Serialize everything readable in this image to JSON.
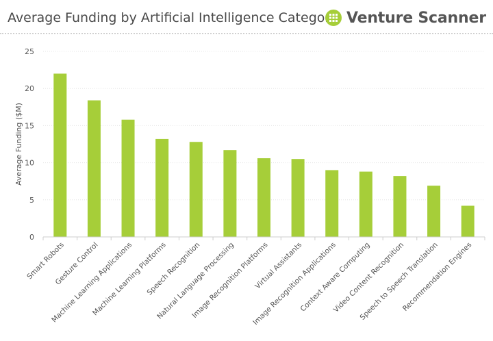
{
  "header": {
    "title": "Average Funding by Artificial Intelligence Category",
    "brand_name": "Venture Scanner",
    "brand_icon": "venture-scanner-logo-icon",
    "brand_color": "#a6ce39"
  },
  "chart_data": {
    "type": "bar",
    "title": "Average Funding by Artificial Intelligence Category",
    "xlabel": "",
    "ylabel": "Average Funding ($M)",
    "ylim": [
      0,
      25
    ],
    "yticks": [
      0,
      5,
      10,
      15,
      20,
      25
    ],
    "grid": true,
    "bar_color": "#a6ce39",
    "categories": [
      "Smart Robots",
      "Gesture Control",
      "Machine Learning Applications",
      "Machine Learning Platforms",
      "Speech Recognition",
      "Natural Language Processing",
      "Image Recognition Platforms",
      "Virtual Assistants",
      "Image Recognition Applications",
      "Context Aware Computing",
      "Video Content Recognition",
      "Speech to Speech Translation",
      "Recommendation Engines"
    ],
    "values": [
      22.0,
      18.4,
      15.8,
      13.2,
      12.8,
      11.7,
      10.6,
      10.5,
      9.0,
      8.8,
      8.2,
      6.9,
      4.2
    ]
  }
}
